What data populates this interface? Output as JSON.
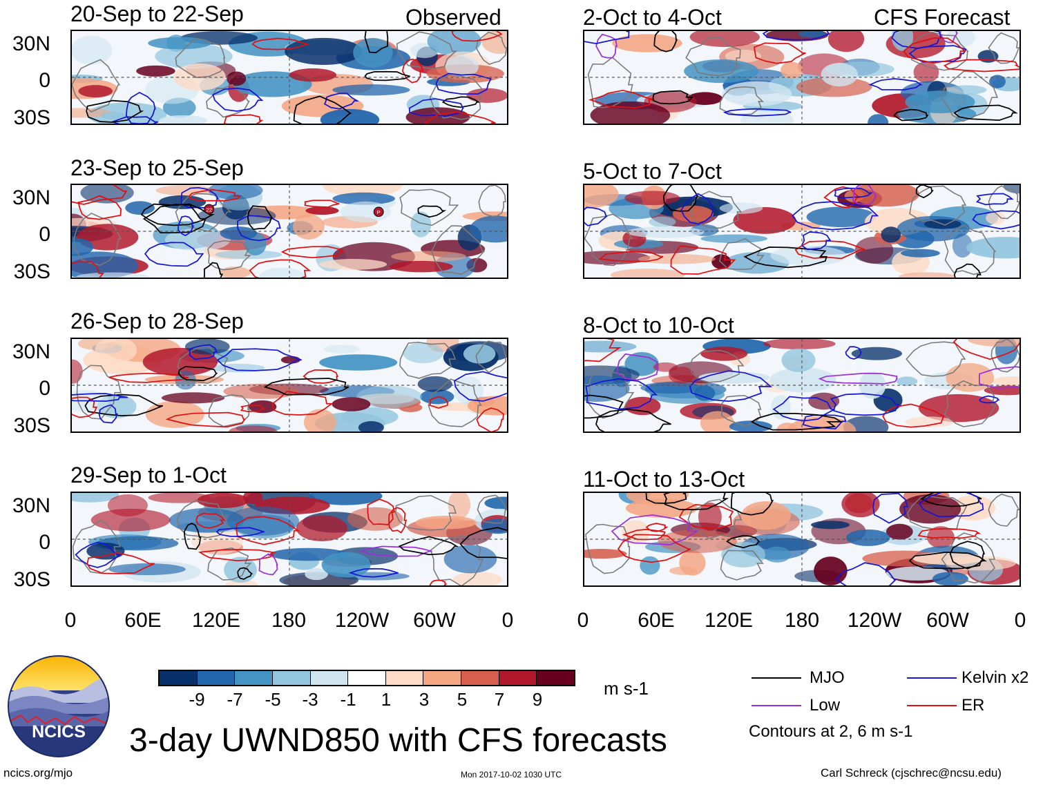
{
  "header": {
    "observed_label": "Observed",
    "forecast_label": "CFS Forecast"
  },
  "observed_panels": [
    {
      "title": "20-Sep to 22-Sep"
    },
    {
      "title": "23-Sep to 25-Sep"
    },
    {
      "title": "26-Sep to 28-Sep"
    },
    {
      "title": "29-Sep to 1-Oct"
    }
  ],
  "forecast_panels": [
    {
      "title": "2-Oct to 4-Oct"
    },
    {
      "title": "5-Oct to 7-Oct"
    },
    {
      "title": "8-Oct to 10-Oct"
    },
    {
      "title": "11-Oct to 13-Oct"
    }
  ],
  "lat_labels": [
    "30N",
    "0",
    "30S"
  ],
  "lon_labels": [
    "0",
    "60E",
    "120E",
    "180",
    "120W",
    "60W",
    "0"
  ],
  "storm_markers": [
    "22",
    "P"
  ],
  "colorbar": {
    "colors": [
      "#08306b",
      "#2166ac",
      "#4393c3",
      "#92c5de",
      "#d1e5f0",
      "#ffffff",
      "#fddbc7",
      "#f4a582",
      "#d6604d",
      "#b2182b",
      "#67001f"
    ],
    "tick_labels": [
      "-9",
      "-7",
      "-5",
      "-3",
      "-1",
      "1",
      "3",
      "5",
      "7",
      "9"
    ],
    "units": "m s-1"
  },
  "legend": {
    "items": [
      {
        "label": "MJO",
        "color": "#000000"
      },
      {
        "label": "Kelvin x2",
        "color": "#1515d6"
      },
      {
        "label": "Low",
        "color": "#9b30d9"
      },
      {
        "label": "ER",
        "color": "#e01010"
      }
    ],
    "note": "Contours at 2, 6 m s-1"
  },
  "logo": {
    "text": "NCICS"
  },
  "main_title": "3-day UWND850 with CFS forecasts",
  "footer": {
    "url": "ncics.org/mjo",
    "timestamp": "Mon 2017-10-02 1030 UTC",
    "author": "Carl Schreck (cjschrec@ncsu.edu)"
  }
}
